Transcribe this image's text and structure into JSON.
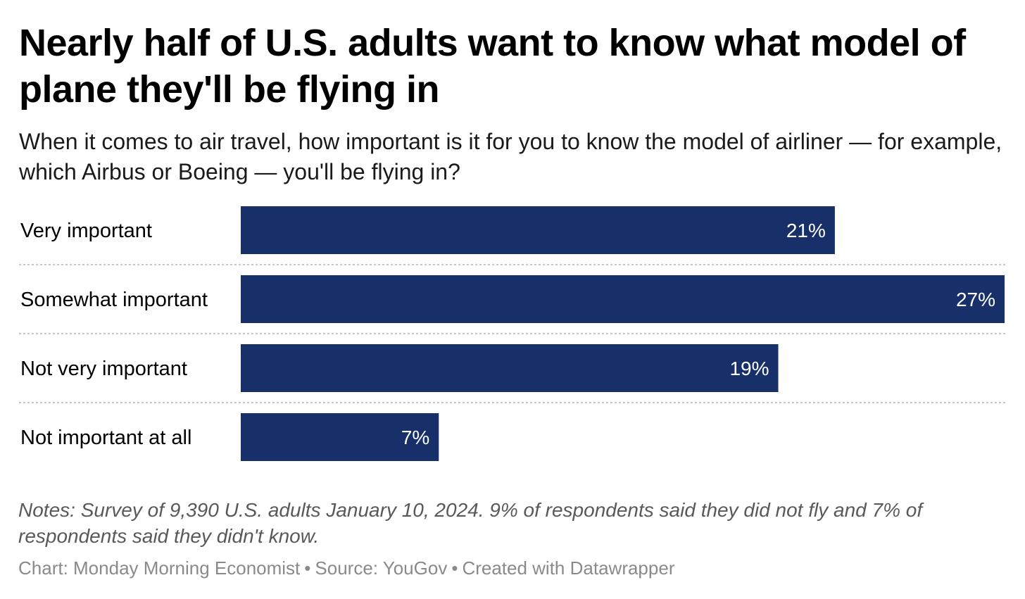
{
  "chart_data": {
    "type": "bar",
    "orientation": "horizontal",
    "title": "Nearly half of U.S. adults want to know what model of plane they'll be flying in",
    "subtitle": "When it comes to air travel, how important is it for you to know the model of airliner — for example, which Airbus or Boeing — you'll be flying in?",
    "categories": [
      "Very important",
      "Somewhat important",
      "Not very important",
      "Not important at all"
    ],
    "values": [
      21,
      27,
      19,
      7
    ],
    "value_labels": [
      "21%",
      "27%",
      "19%",
      "7%"
    ],
    "xlim": [
      0,
      27
    ],
    "unit": "%",
    "grid": false,
    "bar_color": "#17306a"
  },
  "notes": "Notes: Survey of 9,390 U.S. adults January 10, 2024. 9% of respondents said they did not fly and 7% of respondents said they didn't know.",
  "footer": {
    "chart_credit": "Chart: Monday Morning Economist",
    "source": "Source: YouGov",
    "created_with": "Created with Datawrapper",
    "separator": "•"
  }
}
